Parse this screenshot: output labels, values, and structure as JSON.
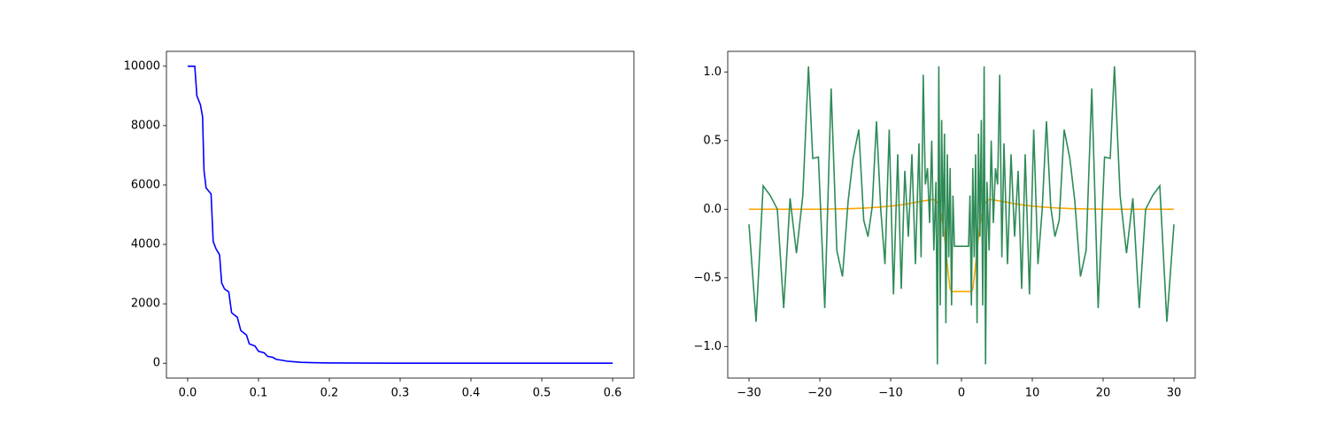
{
  "chart_data": [
    {
      "type": "line",
      "x": [
        0,
        0.005,
        0.01,
        0.013,
        0.018,
        0.021,
        0.023,
        0.026,
        0.033,
        0.036,
        0.04,
        0.045,
        0.048,
        0.052,
        0.058,
        0.062,
        0.07,
        0.075,
        0.083,
        0.087,
        0.095,
        0.1,
        0.108,
        0.113,
        0.12,
        0.125,
        0.133,
        0.14,
        0.15,
        0.16,
        0.175,
        0.2,
        0.25,
        0.3,
        0.4,
        0.5,
        0.6
      ],
      "series": [
        {
          "color": "#0000ff",
          "values": [
            10000,
            10000,
            10000,
            9000,
            8700,
            8300,
            6500,
            5900,
            5700,
            4100,
            3850,
            3650,
            2700,
            2500,
            2400,
            1700,
            1550,
            1100,
            950,
            650,
            580,
            400,
            350,
            230,
            200,
            130,
            100,
            70,
            50,
            30,
            20,
            10,
            5,
            2,
            0,
            0,
            0
          ]
        }
      ],
      "xlim": [
        -0.03,
        0.63
      ],
      "xticks": [
        {
          "value": 0,
          "label": "0.0"
        },
        0.1,
        0.2,
        0.3,
        0.4,
        0.5,
        0.6
      ],
      "ylim": [
        -500,
        10500
      ],
      "yticks": [
        0,
        2000,
        4000,
        6000,
        8000,
        10000
      ]
    },
    {
      "type": "line",
      "x": [
        -30,
        -29,
        -28,
        -27,
        -26,
        -25.1,
        -24.2,
        -23.3,
        -22.4,
        -21.6,
        -21,
        -20.2,
        -19.3,
        -18.4,
        -17.6,
        -16.8,
        -16,
        -15.3,
        -14.5,
        -13.8,
        -13.2,
        -12.6,
        -12,
        -11.4,
        -10.8,
        -10.2,
        -9.6,
        -9,
        -8.5,
        -8,
        -7.5,
        -7,
        -6.5,
        -6,
        -5.7,
        -5.4,
        -5.1,
        -4.8,
        -4.5,
        -4.2,
        -3.9,
        -3.6,
        -3.4,
        -3.2,
        -3,
        -2.8,
        -2.6,
        -2.4,
        -2.2,
        -2,
        -1.8,
        -1.6,
        -1.4,
        -1.2,
        -1,
        -0.5,
        0.5,
        1,
        1.2,
        1.4,
        1.6,
        1.8,
        2,
        2.2,
        2.4,
        2.6,
        2.8,
        3,
        3.2,
        3.4,
        3.6,
        3.9,
        4.2,
        4.5,
        4.8,
        5.1,
        5.4,
        5.7,
        6,
        6.5,
        7,
        7.5,
        8,
        8.5,
        9,
        9.6,
        10.2,
        10.8,
        11.4,
        12,
        12.6,
        13.2,
        13.8,
        14.5,
        15.3,
        16,
        16.8,
        17.6,
        18.4,
        19.3,
        20.2,
        21,
        21.6,
        22.4,
        23.3,
        24.2,
        25.1,
        26,
        27,
        28,
        29,
        30
      ],
      "series": [
        {
          "color": "#ffa500",
          "values": [
            0,
            0,
            0,
            0,
            0,
            0,
            0,
            0,
            0,
            0,
            0,
            0,
            0.001,
            0.002,
            0.002,
            0.003,
            0.004,
            0.005,
            0.007,
            0.008,
            0.01,
            0.012,
            0.014,
            0.016,
            0.019,
            0.022,
            0.025,
            0.028,
            0.032,
            0.036,
            0.04,
            0.045,
            0.05,
            0.055,
            0.057,
            0.06,
            0.062,
            0.065,
            0.068,
            0.07,
            0.07,
            0.06,
            0.05,
            0.03,
            0,
            -0.05,
            -0.12,
            -0.2,
            -0.3,
            -0.4,
            -0.5,
            -0.58,
            -0.6,
            -0.6,
            -0.6,
            -0.6,
            -0.6,
            -0.6,
            -0.6,
            -0.6,
            -0.58,
            -0.5,
            -0.4,
            -0.3,
            -0.2,
            -0.12,
            -0.05,
            0,
            0.03,
            0.05,
            0.06,
            0.07,
            0.07,
            0.068,
            0.065,
            0.062,
            0.06,
            0.057,
            0.055,
            0.05,
            0.045,
            0.04,
            0.036,
            0.032,
            0.028,
            0.025,
            0.022,
            0.019,
            0.016,
            0.014,
            0.012,
            0.01,
            0.008,
            0.007,
            0.005,
            0.004,
            0.003,
            0.002,
            0.002,
            0.001,
            0,
            0,
            0,
            0,
            0,
            0,
            0,
            0,
            0,
            0,
            0,
            0
          ]
        },
        {
          "color": "#2e8b57",
          "values": [
            -0.11,
            -0.82,
            0.17,
            0.1,
            0,
            -0.72,
            0.08,
            -0.32,
            0.1,
            1.04,
            0.37,
            0.38,
            -0.72,
            0.88,
            -0.3,
            -0.49,
            0.06,
            0.37,
            0.58,
            -0.08,
            -0.2,
            0.02,
            0.64,
            0,
            -0.4,
            0.58,
            -0.62,
            0.4,
            -0.58,
            0.28,
            -0.2,
            0.4,
            -0.4,
            0.48,
            -0.35,
            0.98,
            0.18,
            0.3,
            -0.1,
            0.5,
            -0.3,
            0.2,
            -1.13,
            1.04,
            -0.7,
            0.65,
            -0.2,
            0.55,
            -0.83,
            0.4,
            -0.35,
            0.3,
            -0.7,
            0.1,
            -0.27,
            -0.27,
            -0.27,
            -0.27,
            0.1,
            -0.7,
            0.3,
            -0.35,
            0.4,
            -0.83,
            0.55,
            -0.2,
            0.65,
            -0.7,
            1.04,
            -1.13,
            0.2,
            -0.3,
            0.5,
            -0.1,
            0.3,
            0.18,
            0.98,
            -0.35,
            0.48,
            -0.4,
            0.4,
            -0.2,
            0.28,
            -0.58,
            0.4,
            -0.62,
            0.58,
            -0.4,
            0,
            0.64,
            0.02,
            -0.2,
            -0.08,
            0.58,
            0.37,
            0.06,
            -0.49,
            -0.3,
            0.88,
            -0.72,
            0.38,
            0.37,
            1.04,
            0.1,
            -0.32,
            0.08,
            -0.72,
            0,
            0.1,
            0.17,
            -0.82,
            -0.11
          ]
        }
      ],
      "xlim": [
        -33,
        33
      ],
      "xticks": [
        {
          "value": -30,
          "label": "−30"
        },
        {
          "value": -20,
          "label": "−20"
        },
        {
          "value": -10,
          "label": "−10"
        },
        0,
        10,
        20,
        30
      ],
      "ylim": [
        -1.23,
        1.15
      ],
      "yticks": [
        {
          "value": -1,
          "label": "−1.0"
        },
        {
          "value": -0.5,
          "label": "−0.5"
        },
        {
          "value": 0,
          "label": "0.0"
        },
        0.5,
        {
          "value": 1,
          "label": "1.0"
        }
      ]
    }
  ]
}
